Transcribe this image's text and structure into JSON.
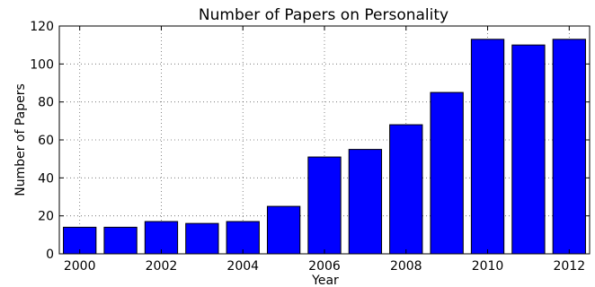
{
  "chart_data": {
    "type": "bar",
    "title": "Number of Papers on Personality",
    "xlabel": "Year",
    "ylabel": "Number of Papers",
    "categories": [
      "2000",
      "2001",
      "2002",
      "2003",
      "2004",
      "2005",
      "2006",
      "2007",
      "2008",
      "2009",
      "2010",
      "2011",
      "2012"
    ],
    "values": [
      14,
      14,
      17,
      16,
      17,
      25,
      51,
      55,
      68,
      85,
      113,
      110,
      113
    ],
    "ylim": [
      0,
      120
    ],
    "yticks": [
      0,
      20,
      40,
      60,
      80,
      100,
      120
    ],
    "xticks": [
      "2000",
      "2002",
      "2004",
      "2006",
      "2008",
      "2010",
      "2012"
    ],
    "grid": true,
    "bar_color": "#0000ff",
    "edge_color": "#000000"
  }
}
